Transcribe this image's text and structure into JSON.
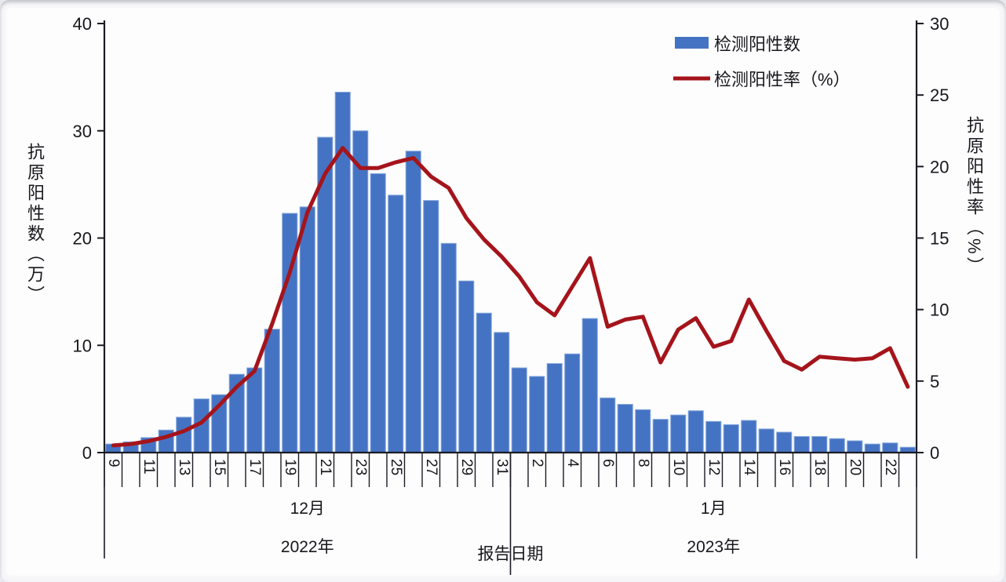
{
  "page": {
    "background": "#f7f7fa",
    "plot_background": "#fdfdfe"
  },
  "colors": {
    "bar": "#4573c4",
    "bar_edge": "#84a7da",
    "line": "#a5141b",
    "axis": "#1b1b24",
    "text": "#17171c"
  },
  "legend": [
    {
      "label": "检测阳性数",
      "type": "bar",
      "color": "#4573c4"
    },
    {
      "label": "检测阳性率（%）",
      "type": "line",
      "color": "#a5141b"
    }
  ],
  "axes": {
    "left": {
      "title": "抗原阳性数（万）",
      "ticks": [
        0,
        10,
        20,
        30,
        40
      ],
      "max": 40
    },
    "right": {
      "title": "抗原阳性率（%）",
      "ticks": [
        0,
        5,
        10,
        15,
        20,
        25,
        30
      ],
      "max": 30
    },
    "x": {
      "dec_labels": [
        "9",
        "11",
        "13",
        "15",
        "17",
        "19",
        "21",
        "23",
        "25",
        "27",
        "29",
        "31"
      ],
      "jan_labels": [
        "2",
        "4",
        "6",
        "8",
        "10",
        "12",
        "14",
        "16",
        "18",
        "20",
        "22"
      ],
      "month_left": "12月",
      "month_right": "1月",
      "year_left": "2022年",
      "year_right": "2023年",
      "axis_caption": "报告日期"
    }
  },
  "chart_data": {
    "type": "bar+line",
    "title": "",
    "xlabel": "报告日期",
    "x_dates": [
      "12-09",
      "12-10",
      "12-11",
      "12-12",
      "12-13",
      "12-14",
      "12-15",
      "12-16",
      "12-17",
      "12-18",
      "12-19",
      "12-20",
      "12-21",
      "12-22",
      "12-23",
      "12-24",
      "12-25",
      "12-26",
      "12-27",
      "12-28",
      "12-29",
      "12-30",
      "12-31",
      "01-01",
      "01-02",
      "01-03",
      "01-04",
      "01-05",
      "01-06",
      "01-07",
      "01-08",
      "01-09",
      "01-10",
      "01-11",
      "01-12",
      "01-13",
      "01-14",
      "01-15",
      "01-16",
      "01-17",
      "01-18",
      "01-19",
      "01-20",
      "01-21",
      "01-22",
      "01-23"
    ],
    "series": [
      {
        "name": "检测阳性数",
        "type": "bar",
        "axis": "left",
        "unit": "万",
        "ylim": [
          0,
          40
        ],
        "values": [
          0.8,
          1.0,
          1.4,
          2.1,
          3.3,
          5.0,
          5.4,
          7.3,
          7.9,
          11.5,
          22.3,
          22.9,
          29.4,
          33.6,
          30.0,
          26.0,
          24.0,
          28.1,
          23.5,
          19.5,
          16.0,
          13.0,
          11.2,
          7.9,
          7.1,
          8.3,
          9.2,
          12.5,
          5.1,
          4.5,
          4.0,
          3.1,
          3.5,
          3.9,
          2.9,
          2.6,
          3.0,
          2.2,
          1.9,
          1.5,
          1.5,
          1.3,
          1.1,
          0.8,
          0.9,
          0.5
        ]
      },
      {
        "name": "检测阳性率（%）",
        "type": "line",
        "axis": "right",
        "unit": "%",
        "ylim": [
          0,
          30
        ],
        "values": [
          0.5,
          0.6,
          0.8,
          1.1,
          1.5,
          2.1,
          3.3,
          4.6,
          5.7,
          9.0,
          12.6,
          16.8,
          19.5,
          21.3,
          19.9,
          19.9,
          20.3,
          20.6,
          19.3,
          18.5,
          16.4,
          14.9,
          13.7,
          12.3,
          10.5,
          9.6,
          11.6,
          13.6,
          8.8,
          9.3,
          9.5,
          6.3,
          8.6,
          9.4,
          7.4,
          7.8,
          10.7,
          8.5,
          6.4,
          5.8,
          6.7,
          6.6,
          6.5,
          6.6,
          7.3,
          4.6
        ]
      }
    ],
    "legend_position": "top-right",
    "grid": false
  }
}
